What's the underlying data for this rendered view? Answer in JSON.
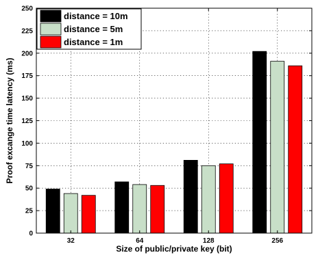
{
  "chart_data": {
    "type": "bar",
    "title": "",
    "xlabel": "Size of public/private key (bit)",
    "ylabel": "Proof excange time latency (ms)",
    "categories": [
      "32",
      "64",
      "128",
      "256"
    ],
    "ylim": [
      0,
      250
    ],
    "yticks": [
      0,
      25,
      50,
      75,
      100,
      125,
      150,
      175,
      200,
      225,
      250
    ],
    "grid": true,
    "legend_position": "top-left",
    "series": [
      {
        "name": "distance = 10m",
        "color": "#000000",
        "values": [
          49,
          57,
          81,
          202
        ]
      },
      {
        "name": "distance = 5m",
        "color": "#c8dfc8",
        "values": [
          44,
          54,
          75,
          191
        ]
      },
      {
        "name": "distance = 1m",
        "color": "#ff0000",
        "values": [
          42,
          53,
          77,
          186
        ]
      }
    ]
  }
}
